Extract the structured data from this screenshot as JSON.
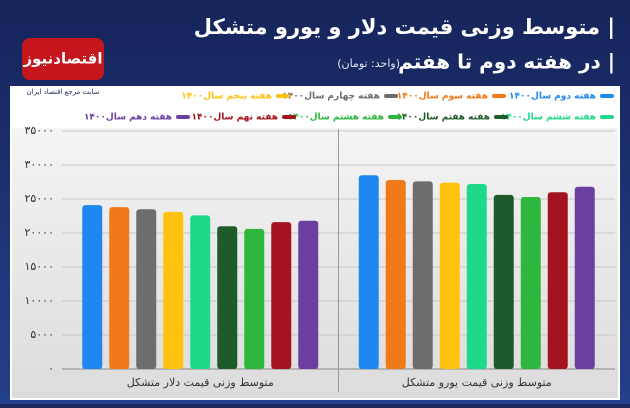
{
  "chart_data": {
    "type": "bar",
    "title": "| متوسط وزنی قیمت دلار  و یورو متشکل",
    "subtitle": "| در هفته دوم تا هفتم",
    "unit": "(واحد: تومان)",
    "brand": "اقتصادنیوز",
    "tagline": "سایت مرجع اقتصاد ایران",
    "categories": [
      "متوسط وزنی قیمت دلار متشکل",
      "متوسط وزنی قیمت یورو متشکل"
    ],
    "series": [
      {
        "name": "هفته دوم سال۱۴۰۰",
        "color": "#1e88f0",
        "values": [
          24100,
          28500
        ]
      },
      {
        "name": "هفته سوم سال۱۴۰۰",
        "color": "#f07a1a",
        "values": [
          23800,
          27800
        ]
      },
      {
        "name": "هفته چهارم سال۱۴۰۰",
        "color": "#6d6d6d",
        "values": [
          23500,
          27600
        ]
      },
      {
        "name": "هفته پنجم سال۱۴۰۰",
        "color": "#ffc20e",
        "values": [
          23100,
          27400
        ]
      },
      {
        "name": "هفته ششم سال۱۴۰۰",
        "color": "#1fd98a",
        "values": [
          22600,
          27200
        ]
      },
      {
        "name": "هفته هفتم سال۱۴۰۰",
        "color": "#1f5a2a",
        "values": [
          21000,
          25600
        ]
      },
      {
        "name": "هفته هشتم سال۱۴۰۰",
        "color": "#2db83d",
        "values": [
          20600,
          25300
        ]
      },
      {
        "name": "هفته نهم سال۱۴۰۰",
        "color": "#a3141e",
        "values": [
          21600,
          26000
        ]
      },
      {
        "name": "هفته دهم سال۱۴۰۰",
        "color": "#6b3fa0",
        "values": [
          21800,
          26800
        ]
      }
    ],
    "ylim": [
      0,
      35000
    ],
    "yticks": [
      {
        "value": 0,
        "label": "۰"
      },
      {
        "value": 5000,
        "label": "۵۰۰۰"
      },
      {
        "value": 10000,
        "label": "۱۰۰۰۰"
      },
      {
        "value": 15000,
        "label": "۱۵۰۰۰"
      },
      {
        "value": 20000,
        "label": "۲۰۰۰۰"
      },
      {
        "value": 25000,
        "label": "۲۵۰۰۰"
      },
      {
        "value": 30000,
        "label": "۳۰۰۰۰"
      },
      {
        "value": 35000,
        "label": "۳۵۰۰۰"
      }
    ],
    "grid": true
  }
}
